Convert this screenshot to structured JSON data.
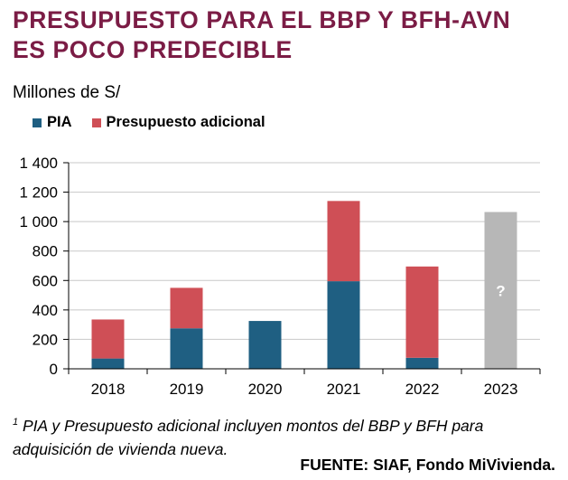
{
  "title_line1": "PRESUPUESTO PARA EL BBP Y BFH-AVN",
  "title_line2": "ES POCO PREDECIBLE",
  "colors": {
    "title": "#7b1c45",
    "pia": "#1f5f82",
    "adicional": "#cf4f56",
    "unknown": "#b7b7b7"
  },
  "chart_data": {
    "type": "bar",
    "stacked": true,
    "ylabel": "Millones de S/",
    "ylim": [
      0,
      1400
    ],
    "yticks": [
      "0",
      "200",
      "400",
      "600",
      "800",
      "1 000",
      "1 200",
      "1 400"
    ],
    "categories": [
      "2018",
      "2019",
      "2020",
      "2021",
      "2022",
      "2023"
    ],
    "series": [
      {
        "name": "PIA",
        "color": "#1f5f82",
        "values": [
          70,
          275,
          325,
          595,
          75,
          0
        ]
      },
      {
        "name": "Presupuesto adicional",
        "color": "#cf4f56",
        "values": [
          265,
          275,
          0,
          545,
          620,
          0
        ]
      },
      {
        "name": "",
        "color": "#b7b7b7",
        "values": [
          0,
          0,
          0,
          0,
          0,
          1065
        ]
      }
    ],
    "annotations": [
      {
        "category": "2023",
        "text": "?"
      }
    ],
    "grid": true,
    "legend_position": "top-left"
  },
  "footnote_sup": "1",
  "footnote_text": "PIA y Presupuesto adicional incluyen montos del BBP y BFH para adquisición de vivienda nueva.",
  "source": "FUENTE: SIAF, Fondo MiVivienda."
}
